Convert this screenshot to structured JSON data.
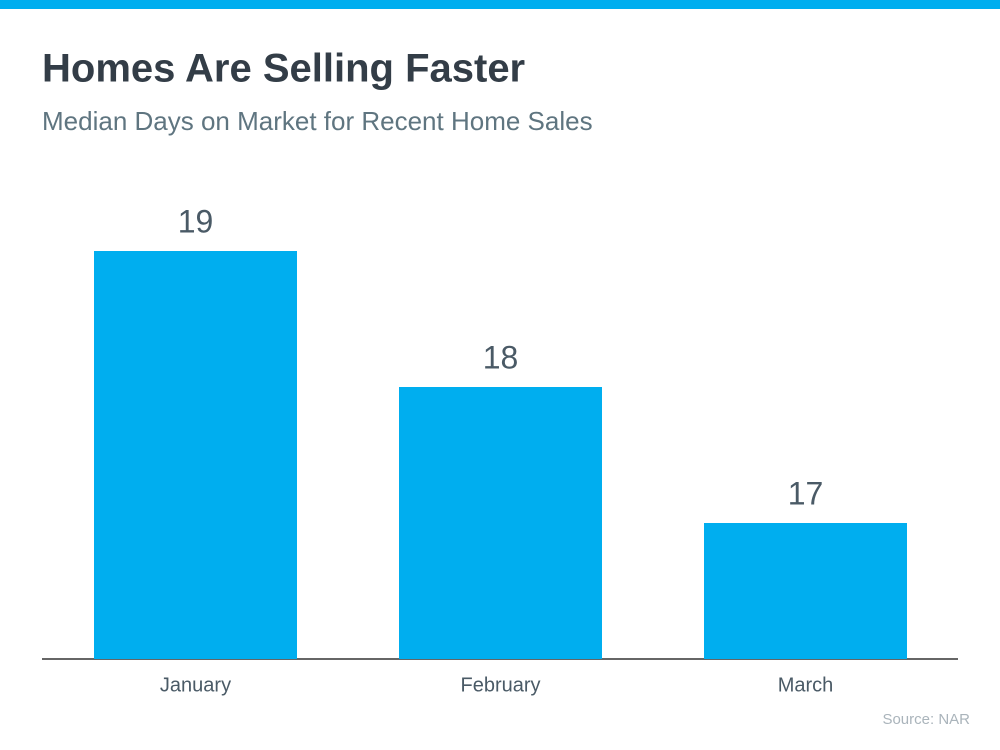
{
  "chart_data": {
    "type": "bar",
    "title": "Homes Are Selling Faster",
    "subtitle": "Median Days on Market for Recent Home Sales",
    "categories": [
      "January",
      "February",
      "March"
    ],
    "values": [
      19,
      18,
      17
    ],
    "color": "#00aeef",
    "ylim": [
      16,
      19
    ],
    "source": "Source: NAR"
  }
}
